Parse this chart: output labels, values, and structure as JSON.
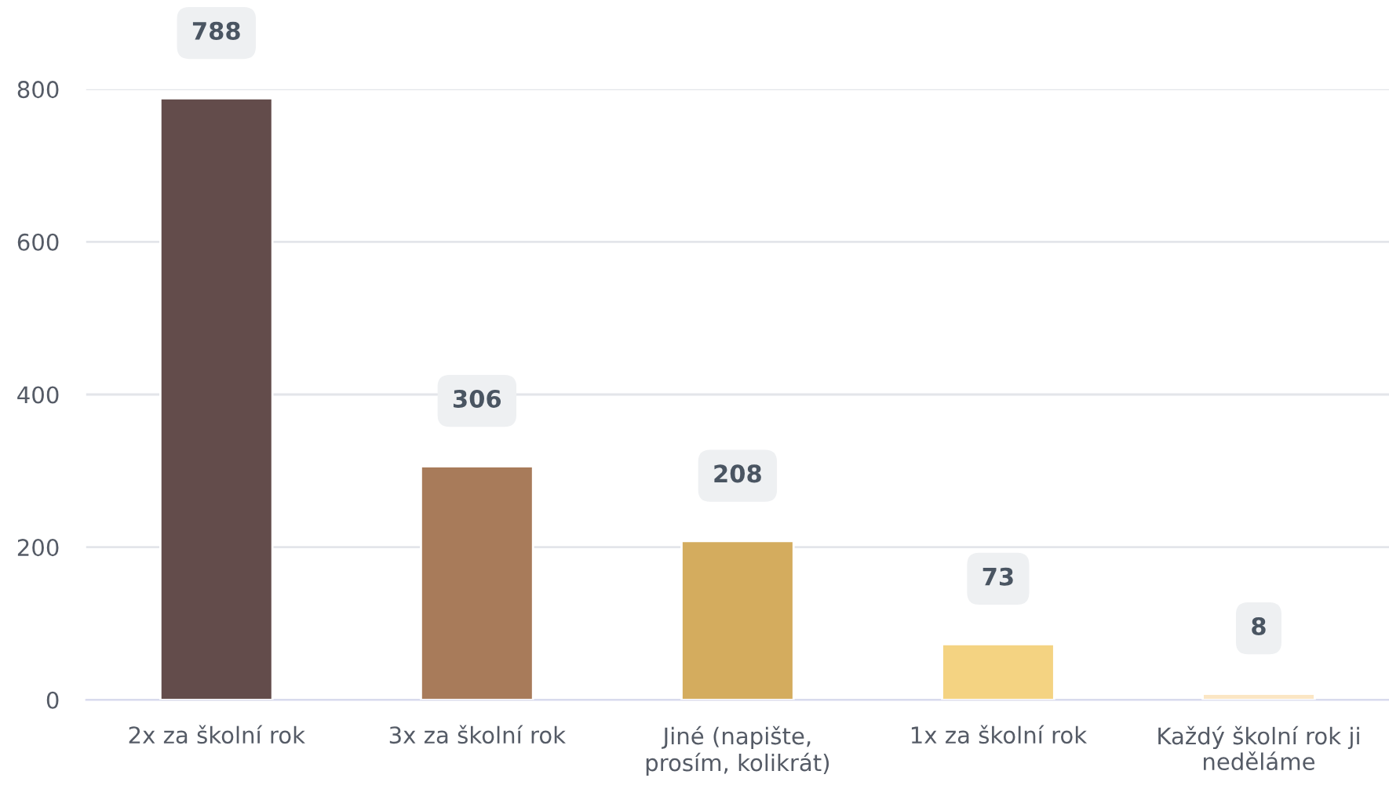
{
  "chart_data": {
    "type": "bar",
    "categories": [
      "2x za školní rok",
      "3x za školní rok",
      "Jiné (napište, prosím, kolikrát)",
      "1x za školní rok",
      "Každý školní rok ji neděláme"
    ],
    "values": [
      788,
      306,
      208,
      73,
      8
    ],
    "colors": [
      "#634c4b",
      "#a87b5a",
      "#d4ac5e",
      "#f4d382",
      "#fbe6c4"
    ],
    "ylim": [
      0,
      800
    ],
    "yticks": [
      0,
      200,
      400,
      600,
      800
    ],
    "grid": "y",
    "data_labels": true
  }
}
